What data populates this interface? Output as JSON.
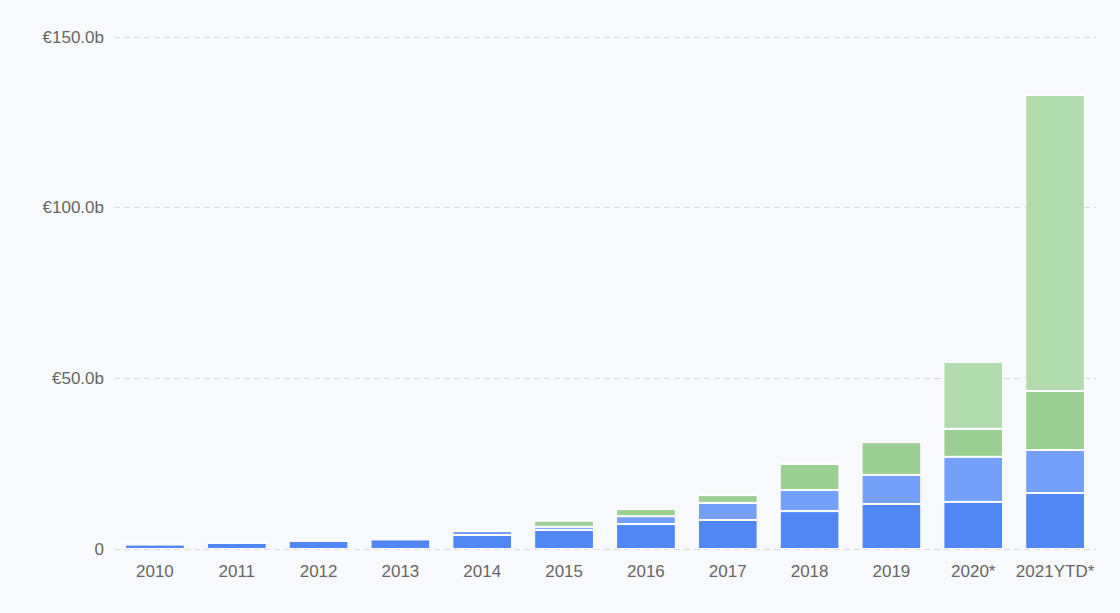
{
  "chart_data": {
    "type": "bar",
    "stacked": true,
    "grid": true,
    "categories": [
      "2010",
      "2011",
      "2012",
      "2013",
      "2014",
      "2015",
      "2016",
      "2017",
      "2018",
      "2019",
      "2020*",
      "2021YTD*"
    ],
    "series": [
      {
        "color": "#5087f5",
        "values": [
          1.3,
          1.8,
          2.4,
          2.8,
          4.1,
          5.6,
          7.3,
          8.5,
          11.1,
          13.2,
          13.8,
          16.4
        ]
      },
      {
        "color": "#74a0fa",
        "values": [
          0.5,
          0,
          0,
          0.4,
          1.2,
          0.9,
          2.3,
          5.0,
          6.2,
          8.5,
          13.2,
          12.6
        ]
      },
      {
        "color": "#9ccf93",
        "values": [
          0,
          0,
          0,
          0,
          0,
          1.8,
          2.1,
          2.3,
          7.6,
          9.6,
          8.2,
          17.3
        ]
      },
      {
        "color": "#b3dcae",
        "values": [
          0,
          0,
          0,
          0,
          0,
          0,
          0,
          0,
          0,
          0,
          19.6,
          86.7
        ]
      }
    ],
    "ylim": [
      0,
      150
    ],
    "yticks": [
      0,
      {
        "value": 50,
        "label": "€50.0b"
      },
      {
        "value": 100,
        "label": "€100.0b"
      },
      {
        "value": 150,
        "label": "€150.0b"
      }
    ]
  }
}
